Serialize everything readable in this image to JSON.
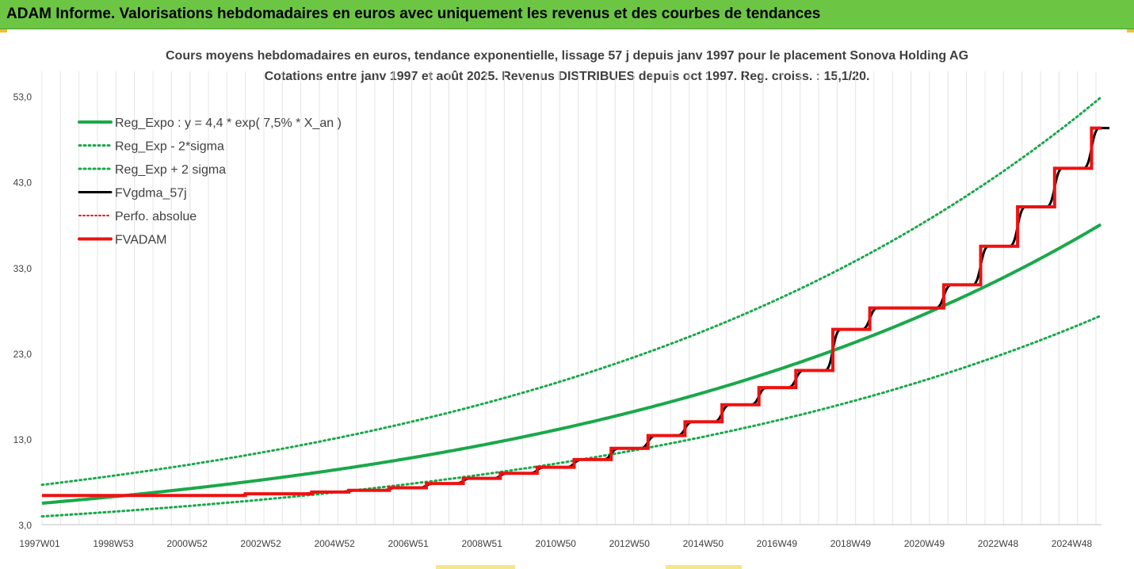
{
  "header": {
    "banner_title": "ADAM Informe. Valorisations hebdomadaires en euros avec uniquement les revenus et des courbes de tendances"
  },
  "colors": {
    "banner_bg": "#6cc644",
    "trend_green": "#1aa84a",
    "fv_black": "#000000",
    "fvadam_red": "#ee1111",
    "perfo_red": "#ee1111"
  },
  "chart_data": {
    "type": "line",
    "title_line1": "Cours moyens hebdomadaires en euros, tendance exponentielle, lissage 57 j depuis janv 1997 pour le placement Sonova Holding AG",
    "title_line2": "Cotations entre janv 1997 et août 2025. Revenus DISTRIBUES depuis oct 1997. Reg. croiss. : 15,1/20.",
    "x_tick_labels": [
      "1997W01",
      "1998W53",
      "2000W52",
      "2002W52",
      "2004W52",
      "2006W51",
      "2008W51",
      "2010W50",
      "2012W50",
      "2014W50",
      "2016W49",
      "2018W49",
      "2020W49",
      "2022W48",
      "2024W48"
    ],
    "x_range_years": [
      1997.0,
      2025.67
    ],
    "y_tick_labels": [
      "3,0",
      "13,0",
      "23,0",
      "33,0",
      "43,0",
      "53,0"
    ],
    "ylim": [
      3,
      55
    ],
    "grid_vertical": true,
    "legend_position": "top-left",
    "regression": {
      "a": 4.4,
      "rate": 0.075,
      "sigma_mult_low": 0.72,
      "sigma_mult_high": 1.39
    },
    "series": [
      {
        "name": "Reg_Expo : y = 4,4 * exp( 7,5% *  X_an )",
        "style": "solid-green"
      },
      {
        "name": "Reg_Exp - 2*sigma",
        "style": "dotted-green"
      },
      {
        "name": "Reg_Exp + 2 sigma",
        "style": "dotted-green"
      },
      {
        "name": "FVgdma_57j",
        "style": "solid-black"
      },
      {
        "name": "Perfo. absolue",
        "style": "dotted-red"
      },
      {
        "name": "FVADAM",
        "style": "solid-red",
        "steps": [
          {
            "x": 1997.0,
            "y": 6.4
          },
          {
            "x": 2002.5,
            "y": 6.6
          },
          {
            "x": 2004.3,
            "y": 6.8
          },
          {
            "x": 2005.3,
            "y": 7.0
          },
          {
            "x": 2006.4,
            "y": 7.3
          },
          {
            "x": 2007.4,
            "y": 7.8
          },
          {
            "x": 2008.4,
            "y": 8.4
          },
          {
            "x": 2009.4,
            "y": 9.0
          },
          {
            "x": 2010.4,
            "y": 9.7
          },
          {
            "x": 2011.4,
            "y": 10.6
          },
          {
            "x": 2012.4,
            "y": 11.9
          },
          {
            "x": 2013.4,
            "y": 13.4
          },
          {
            "x": 2014.4,
            "y": 15.0
          },
          {
            "x": 2015.4,
            "y": 17.0
          },
          {
            "x": 2016.4,
            "y": 19.0
          },
          {
            "x": 2017.4,
            "y": 21.0
          },
          {
            "x": 2018.4,
            "y": 25.8
          },
          {
            "x": 2019.4,
            "y": 28.3
          },
          {
            "x": 2021.4,
            "y": 31.0
          },
          {
            "x": 2022.4,
            "y": 35.5
          },
          {
            "x": 2023.4,
            "y": 40.1
          },
          {
            "x": 2024.4,
            "y": 44.6
          },
          {
            "x": 2025.4,
            "y": 49.3
          },
          {
            "x": 2025.67,
            "y": 49.3
          }
        ]
      }
    ]
  }
}
